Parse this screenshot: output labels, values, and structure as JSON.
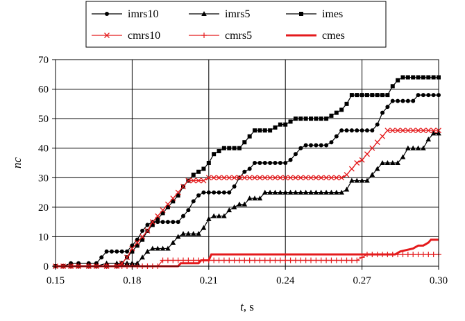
{
  "chart_data": {
    "type": "line",
    "xlabel": "t",
    "xlabel_unit": ", s",
    "ylabel": "nc",
    "xlim": [
      0.15,
      0.3
    ],
    "ylim": [
      0,
      70
    ],
    "xticks": [
      "0.15",
      "0.18",
      "0.21",
      "0.24",
      "0.27",
      "0.30"
    ],
    "yticks": [
      "0",
      "10",
      "20",
      "30",
      "40",
      "50",
      "60",
      "70"
    ],
    "grid": true,
    "legend_position": "top",
    "series": [
      {
        "name": "imrs10",
        "color": "#000000",
        "marker": "circle",
        "line": "thin",
        "x": [
          0.15,
          0.153,
          0.156,
          0.159,
          0.163,
          0.166,
          0.168,
          0.17,
          0.172,
          0.174,
          0.176,
          0.178,
          0.18,
          0.182,
          0.184,
          0.186,
          0.188,
          0.19,
          0.192,
          0.194,
          0.196,
          0.198,
          0.2,
          0.202,
          0.204,
          0.206,
          0.208,
          0.21,
          0.212,
          0.214,
          0.216,
          0.218,
          0.22,
          0.222,
          0.224,
          0.226,
          0.228,
          0.23,
          0.232,
          0.234,
          0.236,
          0.238,
          0.24,
          0.242,
          0.244,
          0.246,
          0.248,
          0.25,
          0.252,
          0.254,
          0.256,
          0.258,
          0.26,
          0.262,
          0.264,
          0.266,
          0.268,
          0.27,
          0.272,
          0.274,
          0.276,
          0.278,
          0.28,
          0.282,
          0.284,
          0.286,
          0.288,
          0.29,
          0.292,
          0.294,
          0.296,
          0.298,
          0.3
        ],
        "y": [
          0,
          0,
          1,
          1,
          1,
          1,
          3,
          5,
          5,
          5,
          5,
          5,
          7,
          9,
          12,
          14,
          15,
          15,
          15,
          15,
          15,
          15,
          17,
          19,
          22,
          24,
          25,
          25,
          25,
          25,
          25,
          25,
          27,
          30,
          32,
          33,
          35,
          35,
          35,
          35,
          35,
          35,
          35,
          36,
          38,
          40,
          41,
          41,
          41,
          41,
          41,
          42,
          44,
          46,
          46,
          46,
          46,
          46,
          46,
          46,
          48,
          52,
          54,
          56,
          56,
          56,
          56,
          56,
          58,
          58,
          58,
          58,
          58
        ]
      },
      {
        "name": "imrs5",
        "color": "#000000",
        "marker": "triangle",
        "line": "thin",
        "x": [
          0.15,
          0.153,
          0.156,
          0.159,
          0.163,
          0.166,
          0.17,
          0.174,
          0.176,
          0.178,
          0.18,
          0.182,
          0.184,
          0.186,
          0.188,
          0.19,
          0.192,
          0.194,
          0.196,
          0.198,
          0.2,
          0.202,
          0.204,
          0.206,
          0.208,
          0.21,
          0.212,
          0.214,
          0.216,
          0.218,
          0.22,
          0.222,
          0.224,
          0.226,
          0.228,
          0.23,
          0.232,
          0.234,
          0.236,
          0.238,
          0.24,
          0.242,
          0.244,
          0.246,
          0.248,
          0.25,
          0.252,
          0.254,
          0.256,
          0.258,
          0.26,
          0.262,
          0.264,
          0.266,
          0.268,
          0.27,
          0.272,
          0.274,
          0.276,
          0.278,
          0.28,
          0.282,
          0.284,
          0.286,
          0.288,
          0.29,
          0.292,
          0.294,
          0.296,
          0.298,
          0.3
        ],
        "y": [
          0,
          0,
          0,
          0,
          0,
          0,
          1,
          1,
          1,
          1,
          1,
          1,
          3,
          5,
          6,
          6,
          6,
          6,
          8,
          10,
          11,
          11,
          11,
          11,
          13,
          16,
          17,
          17,
          17,
          19,
          20,
          21,
          21,
          23,
          23,
          23,
          25,
          25,
          25,
          25,
          25,
          25,
          25,
          25,
          25,
          25,
          25,
          25,
          25,
          25,
          25,
          25,
          26,
          29,
          29,
          29,
          29,
          31,
          33,
          35,
          35,
          35,
          35,
          37,
          40,
          40,
          40,
          40,
          43,
          45,
          45
        ]
      },
      {
        "name": "imes",
        "color": "#000000",
        "marker": "square",
        "line": "thin",
        "x": [
          0.15,
          0.153,
          0.156,
          0.159,
          0.163,
          0.166,
          0.17,
          0.174,
          0.176,
          0.178,
          0.18,
          0.182,
          0.184,
          0.186,
          0.188,
          0.19,
          0.192,
          0.194,
          0.196,
          0.198,
          0.2,
          0.202,
          0.204,
          0.206,
          0.208,
          0.21,
          0.212,
          0.214,
          0.216,
          0.218,
          0.22,
          0.222,
          0.224,
          0.226,
          0.228,
          0.23,
          0.232,
          0.234,
          0.236,
          0.238,
          0.24,
          0.242,
          0.244,
          0.246,
          0.248,
          0.25,
          0.252,
          0.254,
          0.256,
          0.258,
          0.26,
          0.262,
          0.264,
          0.266,
          0.268,
          0.27,
          0.272,
          0.274,
          0.276,
          0.278,
          0.28,
          0.282,
          0.284,
          0.286,
          0.288,
          0.29,
          0.292,
          0.294,
          0.296,
          0.298,
          0.3
        ],
        "y": [
          0,
          0,
          0,
          0,
          0,
          0,
          0,
          0,
          1,
          3,
          5,
          7,
          9,
          12,
          14,
          16,
          18,
          20,
          22,
          24,
          27,
          29,
          31,
          32,
          33,
          35,
          38,
          39,
          40,
          40,
          40,
          40,
          42,
          44,
          46,
          46,
          46,
          46,
          47,
          48,
          48,
          49,
          50,
          50,
          50,
          50,
          50,
          50,
          50,
          51,
          52,
          53,
          55,
          58,
          58,
          58,
          58,
          58,
          58,
          58,
          58,
          61,
          63,
          64,
          64,
          64,
          64,
          64,
          64,
          64,
          64
        ]
      },
      {
        "name": "cmrs10",
        "color": "#e41a1c",
        "marker": "asterisk",
        "line": "thin",
        "x": [
          0.15,
          0.153,
          0.156,
          0.159,
          0.163,
          0.166,
          0.17,
          0.174,
          0.176,
          0.178,
          0.18,
          0.182,
          0.184,
          0.186,
          0.188,
          0.19,
          0.192,
          0.194,
          0.196,
          0.198,
          0.2,
          0.202,
          0.204,
          0.206,
          0.208,
          0.21,
          0.212,
          0.214,
          0.216,
          0.218,
          0.22,
          0.222,
          0.224,
          0.226,
          0.228,
          0.23,
          0.232,
          0.234,
          0.236,
          0.238,
          0.24,
          0.242,
          0.244,
          0.246,
          0.248,
          0.25,
          0.252,
          0.254,
          0.256,
          0.258,
          0.26,
          0.262,
          0.264,
          0.266,
          0.268,
          0.27,
          0.272,
          0.274,
          0.276,
          0.278,
          0.28,
          0.282,
          0.284,
          0.286,
          0.288,
          0.29,
          0.292,
          0.294,
          0.296,
          0.298,
          0.3
        ],
        "y": [
          0,
          0,
          0,
          0,
          0,
          0,
          0,
          0,
          1,
          3,
          6,
          8,
          10,
          12,
          15,
          17,
          19,
          21,
          23,
          25,
          27,
          29,
          29,
          29,
          29,
          30,
          30,
          30,
          30,
          30,
          30,
          30,
          30,
          30,
          30,
          30,
          30,
          30,
          30,
          30,
          30,
          30,
          30,
          30,
          30,
          30,
          30,
          30,
          30,
          30,
          30,
          30,
          31,
          33,
          35,
          36,
          38,
          40,
          42,
          44,
          46,
          46,
          46,
          46,
          46,
          46,
          46,
          46,
          46,
          46,
          46
        ]
      },
      {
        "name": "cmrs5",
        "color": "#e41a1c",
        "marker": "plus",
        "line": "thin",
        "x": [
          0.15,
          0.153,
          0.156,
          0.159,
          0.163,
          0.166,
          0.17,
          0.174,
          0.176,
          0.178,
          0.18,
          0.182,
          0.184,
          0.186,
          0.188,
          0.19,
          0.192,
          0.194,
          0.196,
          0.198,
          0.2,
          0.202,
          0.204,
          0.206,
          0.208,
          0.21,
          0.212,
          0.214,
          0.216,
          0.218,
          0.22,
          0.222,
          0.224,
          0.226,
          0.228,
          0.23,
          0.232,
          0.234,
          0.236,
          0.238,
          0.24,
          0.242,
          0.244,
          0.246,
          0.248,
          0.25,
          0.252,
          0.254,
          0.256,
          0.258,
          0.26,
          0.262,
          0.264,
          0.266,
          0.268,
          0.27,
          0.272,
          0.274,
          0.276,
          0.278,
          0.28,
          0.282,
          0.284,
          0.286,
          0.288,
          0.29,
          0.292,
          0.294,
          0.296,
          0.298,
          0.3
        ],
        "y": [
          0,
          0,
          0,
          0,
          0,
          0,
          0,
          0,
          0,
          0,
          0,
          0,
          0,
          0,
          0,
          0,
          2,
          2,
          2,
          2,
          2,
          2,
          2,
          2,
          2,
          2,
          2,
          2,
          2,
          2,
          2,
          2,
          2,
          2,
          2,
          2,
          2,
          2,
          2,
          2,
          2,
          2,
          2,
          2,
          2,
          2,
          2,
          2,
          2,
          2,
          2,
          2,
          2,
          2,
          2,
          3,
          4,
          4,
          4,
          4,
          4,
          4,
          4,
          4,
          4,
          4,
          4,
          4,
          4,
          4,
          4
        ]
      },
      {
        "name": "cmes",
        "color": "#e41a1c",
        "marker": "none",
        "line": "thick",
        "x": [
          0.15,
          0.198,
          0.199,
          0.206,
          0.207,
          0.21,
          0.211,
          0.276,
          0.277,
          0.283,
          0.285,
          0.29,
          0.292,
          0.294,
          0.296,
          0.297,
          0.3
        ],
        "y": [
          0,
          0,
          1,
          1,
          2,
          2,
          4,
          4,
          4,
          4,
          5,
          6,
          7,
          7,
          8,
          9,
          9
        ]
      }
    ]
  }
}
